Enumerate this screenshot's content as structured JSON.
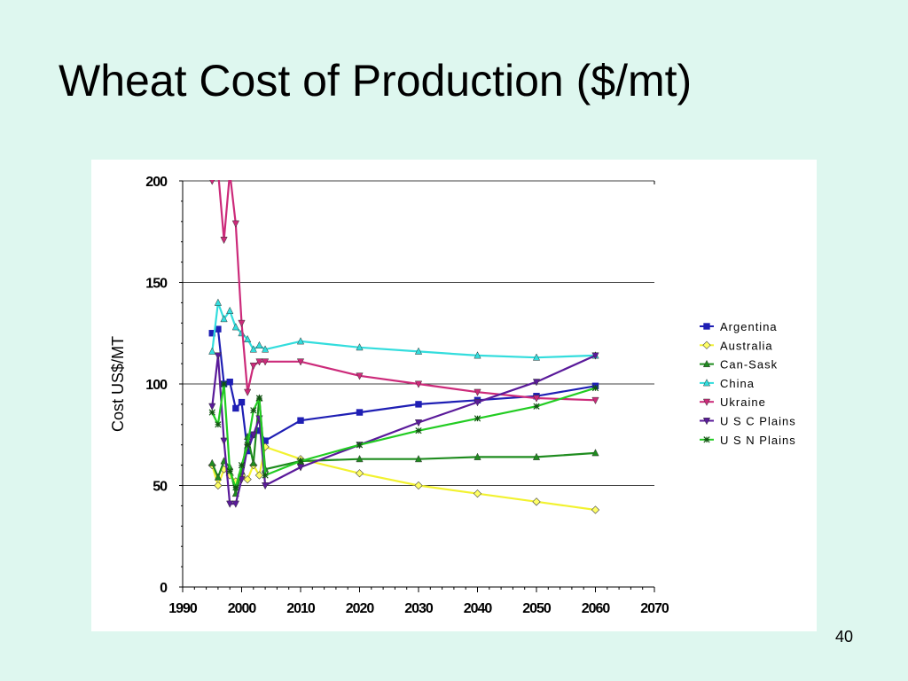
{
  "slide": {
    "title": "Wheat Cost of Production ($/mt)",
    "page_number": "40",
    "background": "#def7ef"
  },
  "chart_data": {
    "type": "line",
    "title": "",
    "xlabel": "",
    "ylabel": "Cost US$/MT",
    "xlim": [
      1990,
      2070
    ],
    "ylim": [
      0,
      200
    ],
    "x_ticks": [
      1990,
      2000,
      2010,
      2020,
      2030,
      2040,
      2050,
      2060,
      2070
    ],
    "y_ticks": [
      0,
      50,
      100,
      150,
      200
    ],
    "grid": "horizontal major",
    "legend_position": "right",
    "series": [
      {
        "name": "Argentina",
        "color": "#1f1fb4",
        "marker": "square",
        "points": [
          [
            1995,
            125
          ],
          [
            1996,
            127
          ],
          [
            1997,
            100
          ],
          [
            1998,
            101
          ],
          [
            1999,
            88
          ],
          [
            2000,
            91
          ],
          [
            2001,
            67
          ],
          [
            2002,
            75
          ],
          [
            2003,
            77
          ],
          [
            2004,
            72
          ],
          [
            2010,
            82
          ],
          [
            2020,
            86
          ],
          [
            2030,
            90
          ],
          [
            2040,
            92
          ],
          [
            2050,
            94
          ],
          [
            2060,
            99
          ]
        ]
      },
      {
        "name": "Australia",
        "color": "#f2f230",
        "marker": "diamond",
        "points": [
          [
            1995,
            60
          ],
          [
            1996,
            50
          ],
          [
            1997,
            58
          ],
          [
            1998,
            55
          ],
          [
            1999,
            52
          ],
          [
            2000,
            55
          ],
          [
            2001,
            53
          ],
          [
            2002,
            60
          ],
          [
            2003,
            55
          ],
          [
            2004,
            69
          ],
          [
            2010,
            63
          ],
          [
            2020,
            56
          ],
          [
            2030,
            50
          ],
          [
            2040,
            46
          ],
          [
            2050,
            42
          ],
          [
            2060,
            38
          ]
        ]
      },
      {
        "name": "Can-Sask",
        "color": "#1f8c1f",
        "marker": "triangle",
        "points": [
          [
            1995,
            61
          ],
          [
            1996,
            54
          ],
          [
            1997,
            62
          ],
          [
            1998,
            59
          ],
          [
            1999,
            46
          ],
          [
            2000,
            57
          ],
          [
            2001,
            74
          ],
          [
            2002,
            61
          ],
          [
            2003,
            93
          ],
          [
            2004,
            58
          ],
          [
            2010,
            62
          ],
          [
            2020,
            63
          ],
          [
            2030,
            63
          ],
          [
            2040,
            64
          ],
          [
            2050,
            64
          ],
          [
            2060,
            66
          ]
        ]
      },
      {
        "name": "China",
        "color": "#33dddd",
        "marker": "triangle",
        "points": [
          [
            1995,
            116
          ],
          [
            1996,
            140
          ],
          [
            1997,
            132
          ],
          [
            1998,
            136
          ],
          [
            1999,
            128
          ],
          [
            2000,
            125
          ],
          [
            2001,
            122
          ],
          [
            2002,
            117
          ],
          [
            2003,
            119
          ],
          [
            2004,
            117
          ],
          [
            2010,
            121
          ],
          [
            2020,
            118
          ],
          [
            2030,
            116
          ],
          [
            2040,
            114
          ],
          [
            2050,
            113
          ],
          [
            2060,
            114
          ]
        ]
      },
      {
        "name": "Ukraine",
        "color": "#cc2a7a",
        "marker": "triangle-down",
        "points": [
          [
            1995,
            200
          ],
          [
            1996,
            205
          ],
          [
            1997,
            171
          ],
          [
            1998,
            204
          ],
          [
            1999,
            179
          ],
          [
            2000,
            130
          ],
          [
            2001,
            96
          ],
          [
            2002,
            109
          ],
          [
            2003,
            111
          ],
          [
            2004,
            111
          ],
          [
            2010,
            111
          ],
          [
            2020,
            104
          ],
          [
            2030,
            100
          ],
          [
            2040,
            96
          ],
          [
            2050,
            93
          ],
          [
            2060,
            92
          ]
        ]
      },
      {
        "name": "U S C Plains",
        "color": "#5a1a9a",
        "marker": "triangle-down",
        "points": [
          [
            1995,
            89
          ],
          [
            1996,
            114
          ],
          [
            1997,
            72
          ],
          [
            1998,
            41
          ],
          [
            1999,
            41
          ],
          [
            2000,
            53
          ],
          [
            2001,
            69
          ],
          [
            2002,
            75
          ],
          [
            2003,
            83
          ],
          [
            2004,
            50
          ],
          [
            2010,
            59
          ],
          [
            2020,
            70
          ],
          [
            2030,
            81
          ],
          [
            2040,
            91
          ],
          [
            2050,
            101
          ],
          [
            2060,
            114
          ]
        ]
      },
      {
        "name": "U S N Plains",
        "color": "#22cc22",
        "marker": "star",
        "points": [
          [
            1995,
            86
          ],
          [
            1996,
            80
          ],
          [
            1997,
            100
          ],
          [
            1998,
            57
          ],
          [
            1999,
            49
          ],
          [
            2000,
            60
          ],
          [
            2001,
            70
          ],
          [
            2002,
            87
          ],
          [
            2003,
            93
          ],
          [
            2004,
            55
          ],
          [
            2010,
            62
          ],
          [
            2020,
            70
          ],
          [
            2030,
            77
          ],
          [
            2040,
            83
          ],
          [
            2050,
            89
          ],
          [
            2060,
            98
          ]
        ]
      }
    ]
  }
}
